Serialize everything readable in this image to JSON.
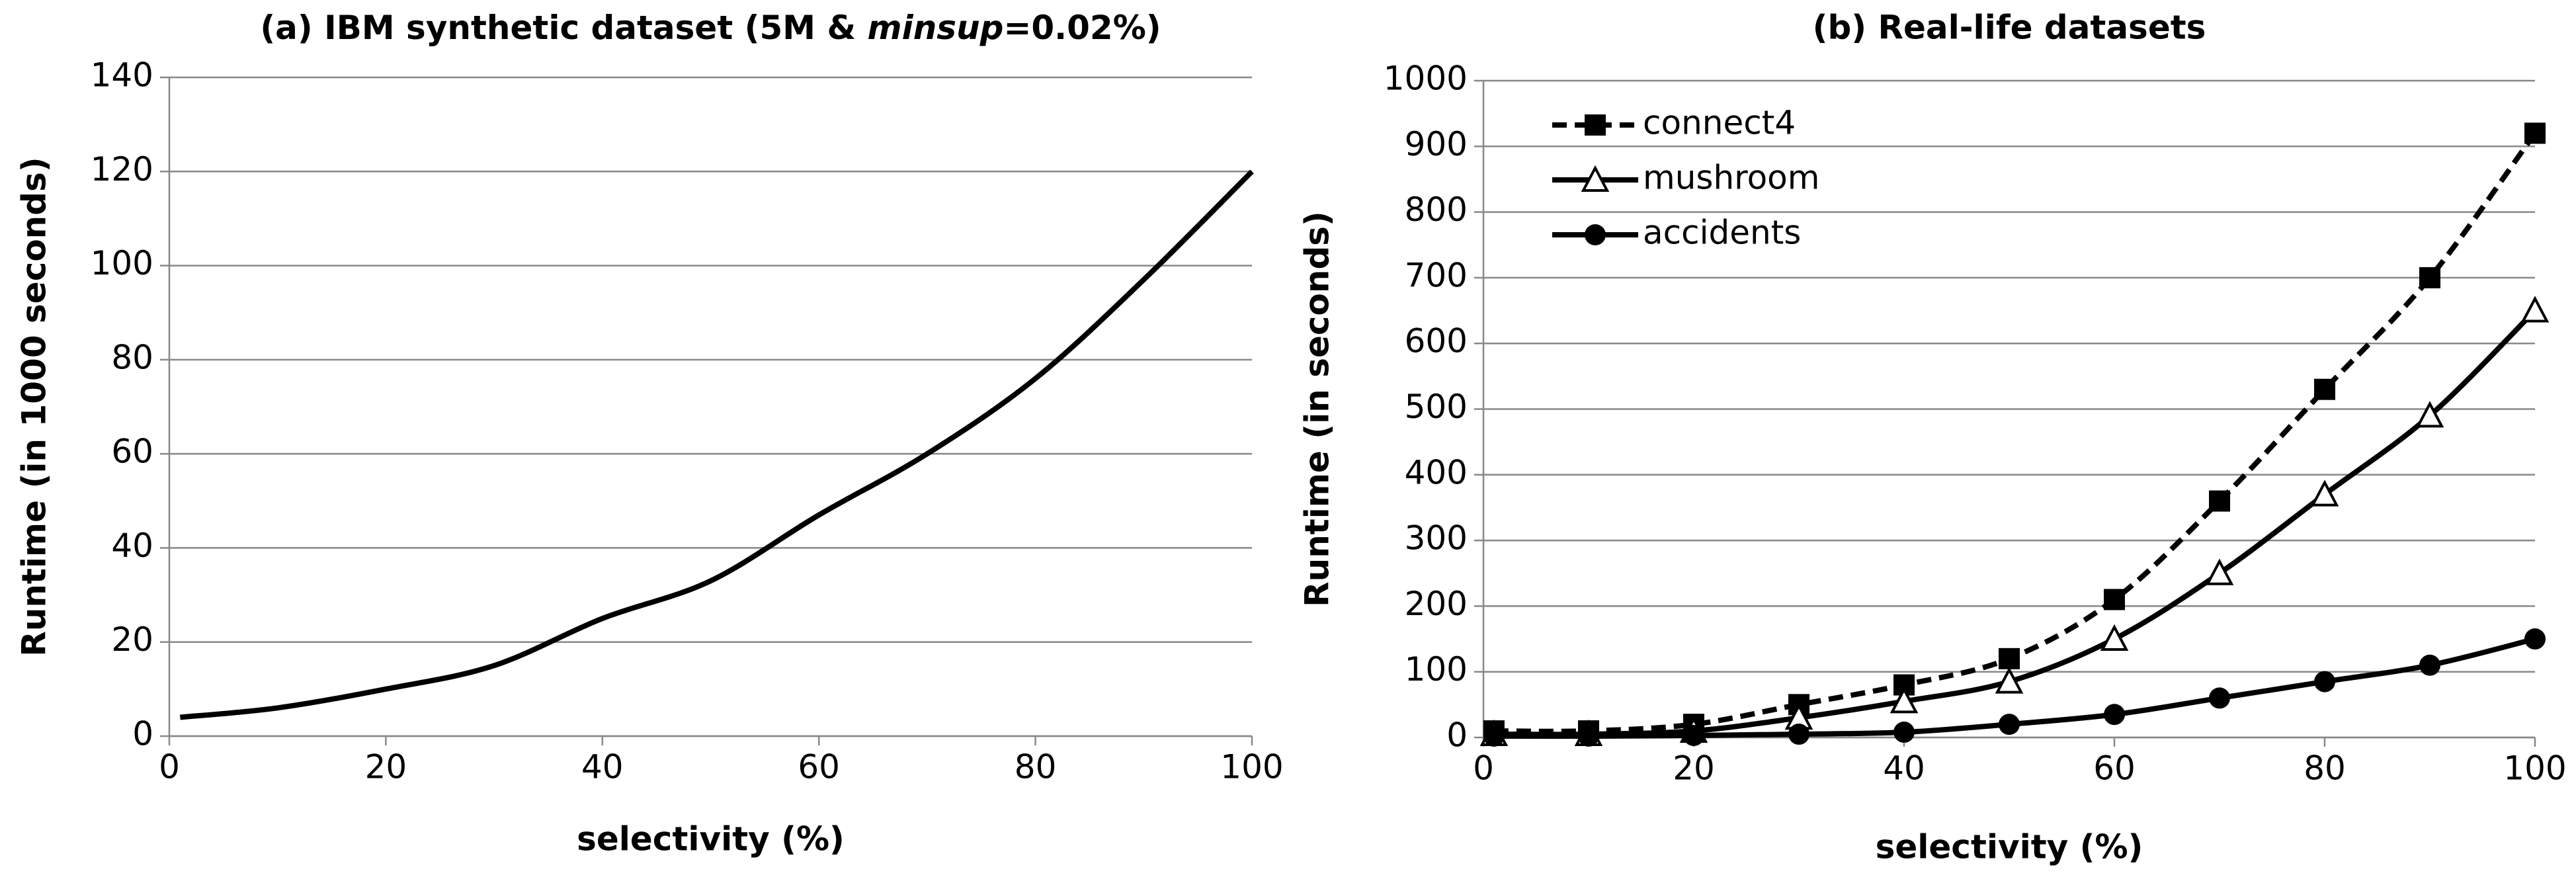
{
  "chart_data": [
    {
      "type": "line",
      "title": [
        "(a) IBM synthetic dataset (5M & ",
        "minsup",
        "=0.02%)"
      ],
      "title_italic": [
        false,
        true,
        false
      ],
      "xlabel": "selectivity (%)",
      "ylabel": "Runtime (in 1000 seconds)",
      "x": [
        1,
        10,
        20,
        30,
        40,
        50,
        60,
        70,
        80,
        90,
        100
      ],
      "series": [
        {
          "color": "#000000",
          "dash": false,
          "marker": "none",
          "values": [
            4,
            6,
            10,
            15,
            25,
            33,
            47,
            60,
            76,
            97,
            120
          ]
        }
      ],
      "xlim": [
        0,
        100
      ],
      "ylim": [
        0,
        140
      ],
      "xticks": [
        0,
        20,
        40,
        60,
        80,
        100
      ],
      "yticks": [
        0,
        20,
        40,
        60,
        80,
        100,
        120,
        140
      ],
      "grid": true
    },
    {
      "type": "line",
      "title": "(b) Real-life datasets",
      "xlabel": "selectivity (%)",
      "ylabel": "Runtime (in seconds)",
      "x": [
        1,
        10,
        20,
        30,
        40,
        50,
        60,
        70,
        80,
        90,
        100
      ],
      "series": [
        {
          "name": "connect4",
          "color": "#000000",
          "dash": true,
          "marker": "square",
          "values": [
            10,
            10,
            20,
            50,
            80,
            120,
            210,
            360,
            530,
            700,
            920
          ]
        },
        {
          "name": "mushroom",
          "color": "#000000",
          "dash": false,
          "marker": "triangle",
          "values": [
            5,
            5,
            10,
            30,
            55,
            85,
            150,
            250,
            370,
            490,
            650
          ]
        },
        {
          "name": "accidents",
          "color": "#000000",
          "dash": false,
          "marker": "circle",
          "values": [
            2,
            2,
            3,
            5,
            8,
            20,
            35,
            60,
            85,
            110,
            150
          ]
        }
      ],
      "xlim": [
        0,
        100
      ],
      "ylim": [
        0,
        1000
      ],
      "xticks": [
        0,
        20,
        40,
        60,
        80,
        100
      ],
      "yticks": [
        0,
        100,
        200,
        300,
        400,
        500,
        600,
        700,
        800,
        900,
        1000
      ],
      "grid": true,
      "legend": "upper left"
    }
  ]
}
